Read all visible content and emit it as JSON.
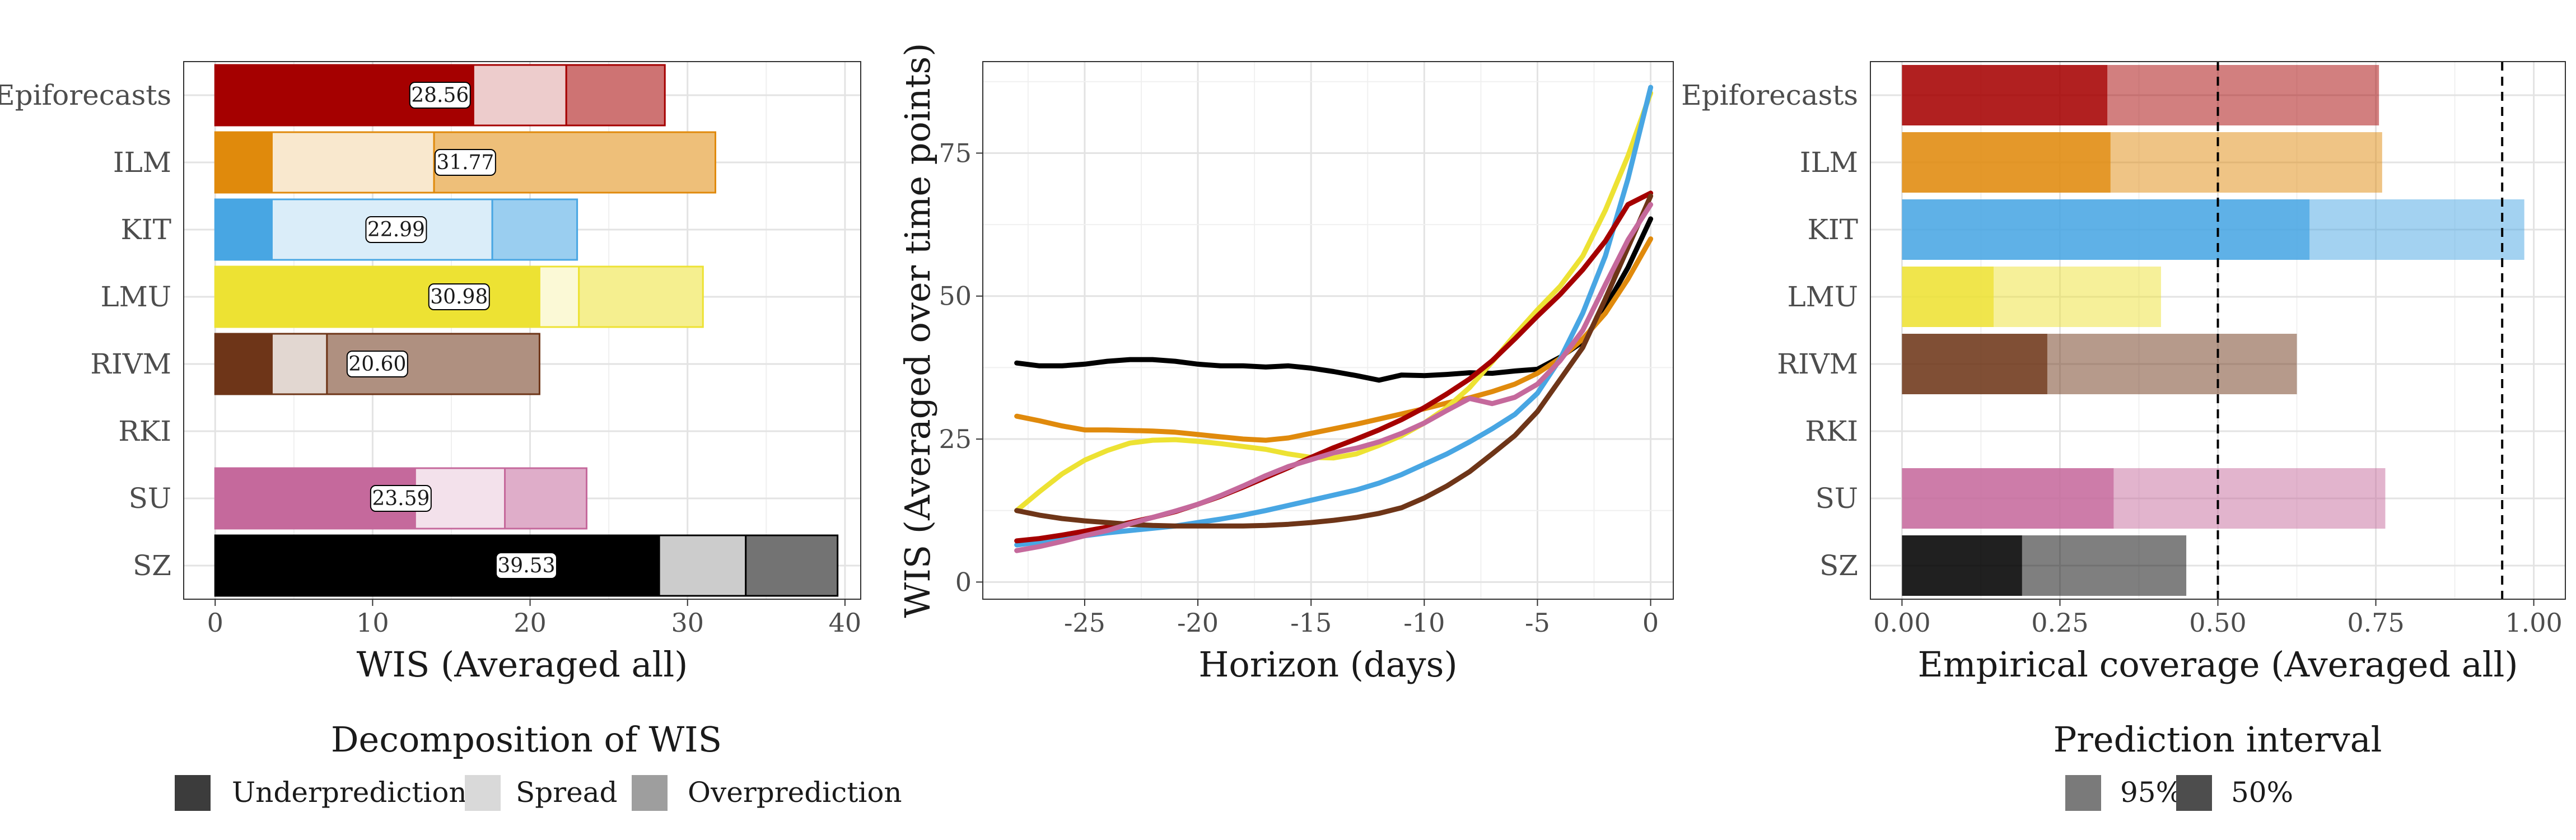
{
  "chart_data": [
    {
      "type": "bar",
      "subtype": "stacked-horizontal",
      "xlabel": "WIS (Averaged all)",
      "xlim": [
        -2,
        41
      ],
      "xticks": [
        0,
        10,
        20,
        30,
        40
      ],
      "categories": [
        "Epiforecasts",
        "ILM",
        "KIT",
        "LMU",
        "RIVM",
        "RKI",
        "SU",
        "SZ"
      ],
      "components": [
        "Underprediction",
        "Spread",
        "Overprediction"
      ],
      "colors": [
        "#a50000",
        "#e08a0c",
        "#48a6e3",
        "#ede233",
        "#6e3518",
        "#ffffff",
        "#c5699c",
        "#000000"
      ],
      "bars": [
        {
          "model": "Epiforecasts",
          "underprediction": 16.4,
          "spread": 5.9,
          "overprediction": 6.26,
          "total": "28.56"
        },
        {
          "model": "ILM",
          "underprediction": 3.6,
          "spread": 10.3,
          "overprediction": 17.87,
          "total": "31.77"
        },
        {
          "model": "KIT",
          "underprediction": 3.6,
          "spread": 14.0,
          "overprediction": 5.39,
          "total": "22.99"
        },
        {
          "model": "LMU",
          "underprediction": 20.6,
          "spread": 2.5,
          "overprediction": 7.88,
          "total": "30.98"
        },
        {
          "model": "RIVM",
          "underprediction": 3.6,
          "spread": 3.5,
          "overprediction": 13.5,
          "total": "20.60"
        },
        {
          "model": "RKI",
          "underprediction": 0,
          "spread": 0,
          "overprediction": 0,
          "total": ""
        },
        {
          "model": "SU",
          "underprediction": 12.7,
          "spread": 5.7,
          "overprediction": 5.19,
          "total": "23.59"
        },
        {
          "model": "SZ",
          "underprediction": 28.2,
          "spread": 5.5,
          "overprediction": 5.83,
          "total": "39.53"
        }
      ],
      "legend": {
        "title": "Decomposition of WIS",
        "items": [
          "Underprediction",
          "Spread",
          "Overprediction"
        ],
        "placement": "bottom"
      }
    },
    {
      "type": "line",
      "xlabel": "Horizon (days)",
      "ylabel": "WIS (Averaged over time points)",
      "xlim": [
        -29.5,
        1
      ],
      "ylim": [
        -3,
        91
      ],
      "xticks": [
        -25,
        -20,
        -15,
        -10,
        -5,
        0
      ],
      "yticks": [
        0,
        25,
        50,
        75
      ],
      "x": [
        -28,
        -27,
        -26,
        -25,
        -24,
        -23,
        -22,
        -21,
        -20,
        -19,
        -18,
        -17,
        -16,
        -15,
        -14,
        -13,
        -12,
        -11,
        -10,
        -9,
        -8,
        -7,
        -6,
        -5,
        -4,
        -3,
        -2,
        -1,
        0
      ],
      "series": [
        {
          "color": "#000000",
          "values": [
            38.3,
            37.8,
            37.8,
            38.1,
            38.6,
            38.9,
            38.9,
            38.6,
            38.1,
            37.8,
            37.8,
            37.6,
            37.8,
            37.4,
            36.8,
            36.1,
            35.3,
            36.2,
            36.1,
            36.3,
            36.6,
            36.5,
            36.9,
            37.2,
            39.3,
            42.0,
            48.0,
            55.0,
            63.5
          ]
        },
        {
          "color": "#e08a0c",
          "values": [
            29.0,
            28.2,
            27.3,
            26.6,
            26.6,
            26.5,
            26.4,
            26.2,
            25.8,
            25.4,
            25.0,
            24.8,
            25.2,
            26.0,
            26.8,
            27.6,
            28.5,
            29.4,
            30.3,
            31.3,
            32.2,
            33.3,
            34.6,
            36.5,
            39.1,
            42.5,
            47.0,
            53.0,
            60.0
          ]
        },
        {
          "color": "#ede233",
          "values": [
            12.5,
            15.8,
            18.9,
            21.3,
            23.0,
            24.3,
            24.8,
            24.9,
            24.6,
            24.2,
            23.7,
            23.2,
            22.4,
            21.8,
            21.7,
            22.4,
            23.9,
            25.6,
            27.8,
            30.5,
            34.0,
            38.5,
            43.2,
            47.6,
            51.7,
            57.0,
            65.0,
            74.5,
            85.5
          ]
        },
        {
          "color": "#48a6e3",
          "values": [
            6.5,
            7.0,
            7.5,
            8.1,
            8.6,
            9.0,
            9.4,
            9.8,
            10.4,
            11.0,
            11.7,
            12.5,
            13.4,
            14.3,
            15.2,
            16.1,
            17.3,
            18.8,
            20.6,
            22.4,
            24.5,
            26.8,
            29.3,
            33.0,
            39.0,
            47.0,
            57.0,
            70.5,
            86.5
          ]
        },
        {
          "color": "#a50000",
          "values": [
            7.2,
            7.6,
            8.2,
            8.9,
            9.6,
            10.4,
            11.3,
            12.3,
            13.6,
            15.0,
            16.6,
            18.3,
            20.0,
            21.8,
            23.5,
            25.0,
            26.6,
            28.4,
            30.5,
            32.9,
            35.5,
            38.7,
            42.5,
            46.5,
            50.3,
            54.6,
            59.6,
            66.0,
            68.0
          ]
        },
        {
          "color": "#6e3518",
          "values": [
            12.5,
            11.7,
            11.1,
            10.7,
            10.4,
            10.1,
            9.9,
            9.8,
            9.8,
            9.8,
            9.8,
            9.9,
            10.1,
            10.4,
            10.8,
            11.3,
            12.0,
            13.0,
            14.7,
            16.8,
            19.3,
            22.4,
            25.6,
            29.8,
            35.4,
            41.0,
            49.5,
            58.5,
            67.5
          ]
        },
        {
          "color": "#c5699c",
          "values": [
            5.5,
            6.2,
            7.1,
            8.1,
            9.0,
            10.2,
            11.3,
            12.4,
            13.6,
            15.1,
            16.8,
            18.6,
            20.2,
            21.4,
            22.6,
            23.4,
            24.5,
            26.0,
            27.8,
            30.0,
            32.1,
            31.2,
            32.3,
            34.6,
            38.7,
            44.0,
            52.0,
            59.8,
            66.0
          ]
        }
      ]
    },
    {
      "type": "bar",
      "subtype": "overlapping-horizontal",
      "xlabel": "Empirical coverage (Averaged all)",
      "xlim": [
        -0.05,
        1.05
      ],
      "xticks": [
        "0.00",
        "0.25",
        "0.50",
        "0.75",
        "1.00"
      ],
      "tick_values": [
        0,
        0.25,
        0.5,
        0.75,
        1.0
      ],
      "reference_lines": [
        0.5,
        0.95
      ],
      "categories": [
        "Epiforecasts",
        "ILM",
        "KIT",
        "LMU",
        "RIVM",
        "RKI",
        "SU",
        "SZ"
      ],
      "colors": [
        "#a50000",
        "#e08a0c",
        "#48a6e3",
        "#ede233",
        "#6e3518",
        "#ffffff",
        "#c5699c",
        "#000000"
      ],
      "coverage_50": [
        0.325,
        0.33,
        0.645,
        0.145,
        0.23,
        0,
        0.335,
        0.19
      ],
      "coverage_95": [
        0.755,
        0.76,
        0.985,
        0.41,
        0.625,
        0,
        0.765,
        0.45
      ],
      "legend": {
        "title": "Prediction interval",
        "items": [
          "95%",
          "50%"
        ],
        "placement": "bottom"
      }
    }
  ]
}
